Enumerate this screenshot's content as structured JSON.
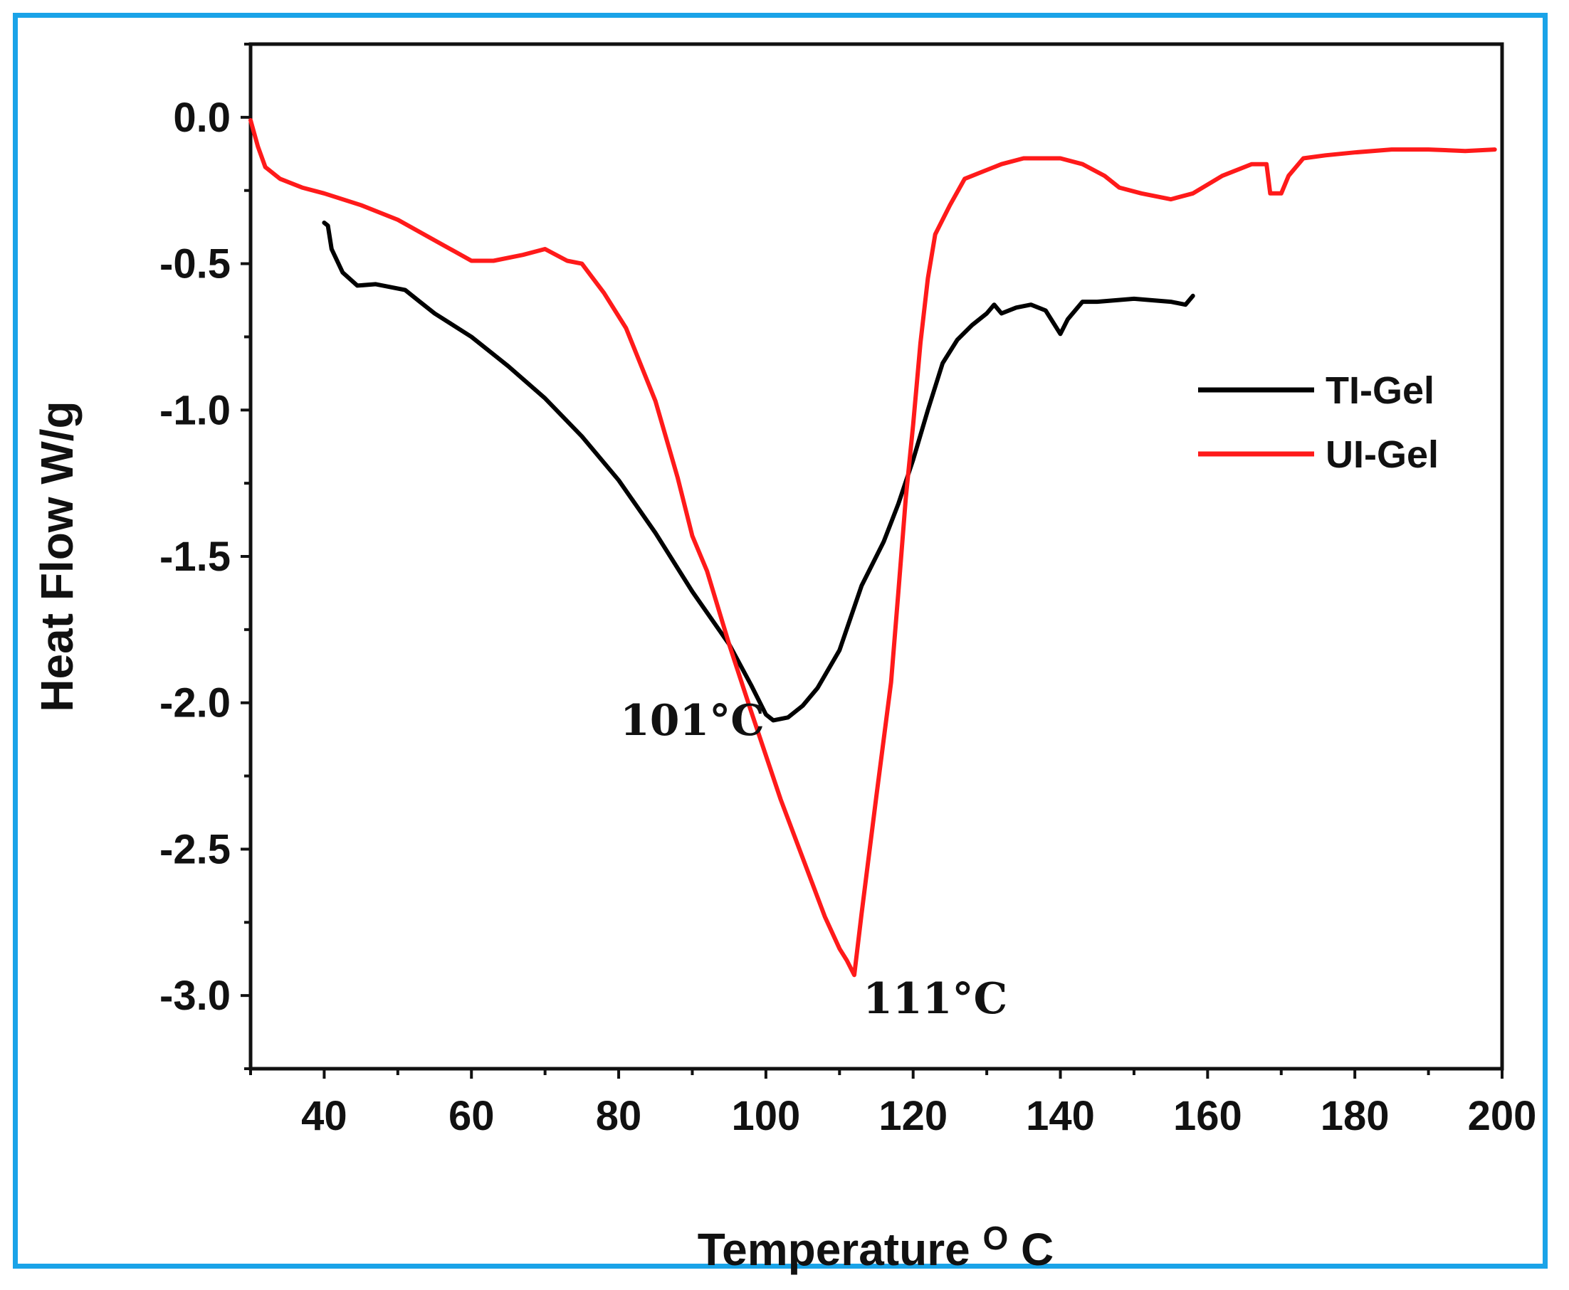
{
  "chart_data": {
    "type": "line",
    "xlabel": "Temperature",
    "xlabel_sup": "O",
    "xlabel_unit": "C",
    "ylabel": "Heat Flow W/g",
    "xlim": [
      30,
      200
    ],
    "ylim": [
      -3.25,
      0.25
    ],
    "x_ticks": [
      40,
      60,
      80,
      100,
      120,
      140,
      160,
      180,
      200
    ],
    "y_ticks": [
      0.0,
      -0.5,
      -1.0,
      -1.5,
      -2.0,
      -2.5,
      -3.0
    ],
    "x_tick_labels": [
      "40",
      "60",
      "80",
      "100",
      "120",
      "140",
      "160",
      "180",
      "200"
    ],
    "y_tick_labels": [
      "0.0",
      "-0.5",
      "-1.0",
      "-1.5",
      "-2.0",
      "-2.5",
      "-3.0"
    ],
    "legend": "right",
    "grid": false,
    "series": [
      {
        "name": "TI-Gel",
        "color": "#000000",
        "points": [
          [
            40,
            -0.36
          ],
          [
            40.5,
            -0.37
          ],
          [
            41,
            -0.45
          ],
          [
            42.5,
            -0.53
          ],
          [
            44.5,
            -0.575
          ],
          [
            47,
            -0.57
          ],
          [
            51,
            -0.59
          ],
          [
            53,
            -0.63
          ],
          [
            55,
            -0.67
          ],
          [
            60,
            -0.75
          ],
          [
            65,
            -0.85
          ],
          [
            70,
            -0.96
          ],
          [
            75,
            -1.09
          ],
          [
            80,
            -1.24
          ],
          [
            85,
            -1.42
          ],
          [
            90,
            -1.62
          ],
          [
            95,
            -1.8
          ],
          [
            98,
            -1.94
          ],
          [
            100,
            -2.04
          ],
          [
            101,
            -2.06
          ],
          [
            103,
            -2.05
          ],
          [
            105,
            -2.01
          ],
          [
            107,
            -1.95
          ],
          [
            110,
            -1.82
          ],
          [
            113,
            -1.6
          ],
          [
            116,
            -1.45
          ],
          [
            118,
            -1.32
          ],
          [
            120,
            -1.17
          ],
          [
            122,
            -1.0
          ],
          [
            124,
            -0.84
          ],
          [
            126,
            -0.76
          ],
          [
            128,
            -0.71
          ],
          [
            130,
            -0.67
          ],
          [
            131,
            -0.64
          ],
          [
            132,
            -0.67
          ],
          [
            134,
            -0.65
          ],
          [
            136,
            -0.64
          ],
          [
            138,
            -0.66
          ],
          [
            140,
            -0.74
          ],
          [
            141,
            -0.69
          ],
          [
            143,
            -0.63
          ],
          [
            145,
            -0.63
          ],
          [
            150,
            -0.62
          ],
          [
            155,
            -0.63
          ],
          [
            157,
            -0.64
          ],
          [
            158,
            -0.61
          ]
        ]
      },
      {
        "name": "UI-Gel",
        "color": "#ff1a1a",
        "points": [
          [
            30,
            -0.01
          ],
          [
            31,
            -0.1
          ],
          [
            32,
            -0.17
          ],
          [
            34,
            -0.21
          ],
          [
            37,
            -0.24
          ],
          [
            40,
            -0.26
          ],
          [
            45,
            -0.3
          ],
          [
            50,
            -0.35
          ],
          [
            55,
            -0.42
          ],
          [
            60,
            -0.49
          ],
          [
            63,
            -0.49
          ],
          [
            67,
            -0.47
          ],
          [
            70,
            -0.45
          ],
          [
            73,
            -0.49
          ],
          [
            75,
            -0.5
          ],
          [
            78,
            -0.6
          ],
          [
            81,
            -0.72
          ],
          [
            85,
            -0.97
          ],
          [
            88,
            -1.23
          ],
          [
            90,
            -1.43
          ],
          [
            92,
            -1.55
          ],
          [
            95,
            -1.8
          ],
          [
            98,
            -2.03
          ],
          [
            100,
            -2.18
          ],
          [
            102,
            -2.33
          ],
          [
            105,
            -2.53
          ],
          [
            108,
            -2.73
          ],
          [
            110,
            -2.84
          ],
          [
            111,
            -2.88
          ],
          [
            112,
            -2.93
          ],
          [
            113,
            -2.72
          ],
          [
            115,
            -2.32
          ],
          [
            117,
            -1.93
          ],
          [
            118,
            -1.62
          ],
          [
            119,
            -1.3
          ],
          [
            120,
            -1.05
          ],
          [
            121,
            -0.77
          ],
          [
            122,
            -0.55
          ],
          [
            123,
            -0.4
          ],
          [
            125,
            -0.3
          ],
          [
            127,
            -0.21
          ],
          [
            129,
            -0.19
          ],
          [
            132,
            -0.16
          ],
          [
            135,
            -0.14
          ],
          [
            140,
            -0.14
          ],
          [
            143,
            -0.16
          ],
          [
            146,
            -0.2
          ],
          [
            148,
            -0.24
          ],
          [
            151,
            -0.26
          ],
          [
            155,
            -0.28
          ],
          [
            158,
            -0.26
          ],
          [
            162,
            -0.2
          ],
          [
            166,
            -0.16
          ],
          [
            168,
            -0.16
          ],
          [
            168.5,
            -0.26
          ],
          [
            170,
            -0.26
          ],
          [
            171,
            -0.2
          ],
          [
            173,
            -0.14
          ],
          [
            176,
            -0.13
          ],
          [
            180,
            -0.12
          ],
          [
            185,
            -0.11
          ],
          [
            190,
            -0.11
          ],
          [
            195,
            -0.115
          ],
          [
            199,
            -0.11
          ]
        ]
      }
    ],
    "annotations": [
      {
        "text": "101°C",
        "x": 90,
        "y": -2.11
      },
      {
        "text": "111°C",
        "x": 123,
        "y": -3.06
      }
    ]
  }
}
